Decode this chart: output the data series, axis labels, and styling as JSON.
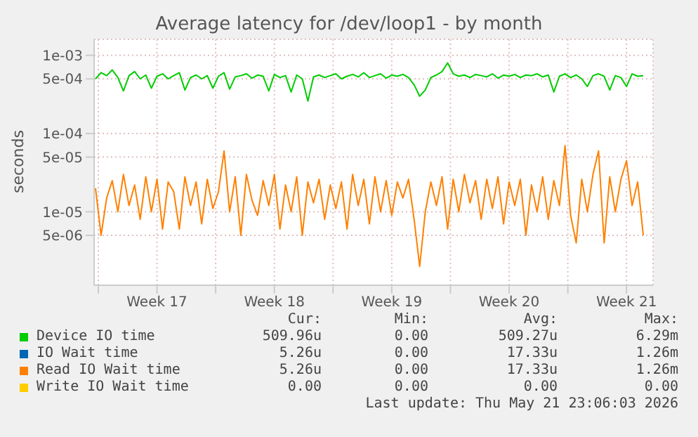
{
  "chart_data": {
    "type": "line",
    "title": "Average latency for /dev/loop1 - by month",
    "ylabel": "seconds",
    "x": [
      "2026-04-19T20:00",
      "2026-04-20T04:00",
      "2026-04-20T12:00",
      "2026-04-20T20:00",
      "2026-04-21T04:00",
      "2026-04-21T12:00",
      "2026-04-21T20:00",
      "2026-04-22T04:00",
      "2026-04-22T12:00",
      "2026-04-22T20:00",
      "2026-04-23T04:00",
      "2026-04-23T12:00",
      "2026-04-23T20:00",
      "2026-04-24T04:00",
      "2026-04-24T12:00",
      "2026-04-24T20:00",
      "2026-04-25T04:00",
      "2026-04-25T12:00",
      "2026-04-25T20:00",
      "2026-04-26T04:00",
      "2026-04-26T12:00",
      "2026-04-26T20:00",
      "2026-04-27T04:00",
      "2026-04-27T12:00",
      "2026-04-27T20:00",
      "2026-04-28T04:00",
      "2026-04-28T12:00",
      "2026-04-28T20:00",
      "2026-04-29T04:00",
      "2026-04-29T12:00",
      "2026-04-29T20:00",
      "2026-04-30T04:00",
      "2026-04-30T12:00",
      "2026-04-30T20:00",
      "2026-05-01T04:00",
      "2026-05-01T12:00",
      "2026-05-01T20:00",
      "2026-05-02T04:00",
      "2026-05-02T12:00",
      "2026-05-02T20:00",
      "2026-05-03T04:00",
      "2026-05-03T12:00",
      "2026-05-03T20:00",
      "2026-05-04T04:00",
      "2026-05-04T12:00",
      "2026-05-04T20:00",
      "2026-05-05T04:00",
      "2026-05-05T12:00",
      "2026-05-05T20:00",
      "2026-05-06T04:00",
      "2026-05-06T12:00",
      "2026-05-06T20:00",
      "2026-05-07T04:00",
      "2026-05-07T12:00",
      "2026-05-07T20:00",
      "2026-05-08T04:00",
      "2026-05-08T12:00",
      "2026-05-08T20:00",
      "2026-05-09T04:00",
      "2026-05-09T12:00",
      "2026-05-09T20:00",
      "2026-05-10T04:00",
      "2026-05-10T12:00",
      "2026-05-10T20:00",
      "2026-05-11T04:00",
      "2026-05-11T12:00",
      "2026-05-11T20:00",
      "2026-05-12T04:00",
      "2026-05-12T12:00",
      "2026-05-12T20:00",
      "2026-05-13T04:00",
      "2026-05-13T12:00",
      "2026-05-13T20:00",
      "2026-05-14T04:00",
      "2026-05-14T12:00",
      "2026-05-14T20:00",
      "2026-05-15T04:00",
      "2026-05-15T12:00",
      "2026-05-15T20:00",
      "2026-05-16T04:00",
      "2026-05-16T12:00",
      "2026-05-16T20:00",
      "2026-05-17T04:00",
      "2026-05-17T12:00",
      "2026-05-17T20:00",
      "2026-05-18T04:00",
      "2026-05-18T12:00",
      "2026-05-18T20:00",
      "2026-05-19T04:00",
      "2026-05-19T12:00",
      "2026-05-19T20:00",
      "2026-05-20T04:00",
      "2026-05-20T12:00",
      "2026-05-20T20:00",
      "2026-05-21T04:00",
      "2026-05-21T12:00",
      "2026-05-21T20:00",
      "2026-05-22T04:00",
      "2026-05-22T12:00"
    ],
    "series": [
      {
        "name": "Device IO time",
        "color": "#00cc00",
        "values": [
          0.0005,
          0.0006,
          0.00055,
          0.00065,
          0.00052,
          0.00035,
          0.00055,
          0.00062,
          0.0005,
          0.00056,
          0.00038,
          0.00054,
          0.00058,
          0.0005,
          0.00055,
          0.0006,
          0.00036,
          0.00052,
          0.00056,
          0.0005,
          0.00055,
          0.00038,
          0.00054,
          0.0006,
          0.00037,
          0.00053,
          0.00055,
          0.00058,
          0.00051,
          0.00056,
          0.00054,
          0.00035,
          0.00057,
          0.00052,
          0.00055,
          0.00034,
          0.00056,
          0.0005,
          0.00026,
          0.00053,
          0.00056,
          0.00052,
          0.00055,
          0.00058,
          0.0005,
          0.00054,
          0.00057,
          0.00053,
          0.0006,
          0.00052,
          0.00055,
          0.00058,
          0.00051,
          0.00056,
          0.00054,
          0.00057,
          0.00052,
          0.00042,
          0.0003,
          0.00036,
          0.00052,
          0.00056,
          0.00062,
          0.0008,
          0.00058,
          0.00054,
          0.00056,
          0.00052,
          0.00057,
          0.00055,
          0.00053,
          0.00058,
          0.00051,
          0.00056,
          0.00054,
          0.00057,
          0.00052,
          0.00056,
          0.00055,
          0.00058,
          0.00053,
          0.00056,
          0.00034,
          0.00054,
          0.00058,
          0.00052,
          0.00056,
          0.0005,
          0.0004,
          0.00055,
          0.00058,
          0.00054,
          0.00036,
          0.00055,
          0.00052,
          0.0004,
          0.00058,
          0.00054,
          0.00055
        ]
      },
      {
        "name": "IO Wait time",
        "color": "#0066b3",
        "values": [
          null,
          null,
          null,
          null,
          null,
          null,
          null,
          null,
          null,
          null,
          null,
          null,
          null,
          null,
          null,
          null,
          null,
          null,
          null,
          null,
          null,
          null,
          null,
          null,
          null,
          null,
          null,
          null,
          null,
          null,
          null,
          null,
          null,
          null,
          null,
          null,
          null,
          null,
          null,
          null,
          null,
          null,
          null,
          null,
          null,
          null,
          null,
          null,
          null,
          null,
          null,
          null,
          null,
          null,
          null,
          null,
          null,
          null,
          null,
          null,
          null,
          null,
          null,
          null,
          null,
          null,
          null,
          null,
          null,
          null,
          null,
          null,
          null,
          null,
          null,
          null,
          null,
          null,
          null,
          null,
          null,
          null,
          null,
          null,
          null,
          null,
          null,
          null,
          null,
          null,
          null,
          null,
          null,
          null,
          null,
          null,
          null,
          null,
          null
        ]
      },
      {
        "name": "Read IO Wait time",
        "color": "#ff8000",
        "values": [
          2e-05,
          5e-06,
          1.5e-05,
          2.5e-05,
          1e-05,
          3e-05,
          1.2e-05,
          2.2e-05,
          8e-06,
          2.8e-05,
          1e-05,
          2.6e-05,
          6e-06,
          2.4e-05,
          1.8e-05,
          6e-06,
          2.8e-05,
          1.2e-05,
          2.4e-05,
          7e-06,
          2.6e-05,
          1.1e-05,
          1.8e-05,
          6e-05,
          1e-05,
          2.8e-05,
          5e-06,
          3e-05,
          1.4e-05,
          9e-06,
          2.5e-05,
          1.2e-05,
          3e-05,
          6e-06,
          2.2e-05,
          1e-05,
          2.8e-05,
          5e-06,
          2.4e-05,
          1.3e-05,
          2.6e-05,
          8e-06,
          2.2e-05,
          1.1e-05,
          2.4e-05,
          6e-06,
          3e-05,
          1.2e-05,
          2.6e-05,
          7e-06,
          2.8e-05,
          1e-05,
          2.5e-05,
          9e-06,
          2.4e-05,
          1.5e-05,
          2.6e-05,
          8e-06,
          2e-06,
          1e-05,
          2.4e-05,
          1.2e-05,
          2.8e-05,
          6e-06,
          2.6e-05,
          1e-05,
          3e-05,
          1.3e-05,
          2.5e-05,
          8e-06,
          2.6e-05,
          1.1e-05,
          2.8e-05,
          7e-06,
          2.4e-05,
          1.2e-05,
          2.6e-05,
          5e-06,
          2.2e-05,
          1e-05,
          2.8e-05,
          8e-06,
          2.5e-05,
          1.2e-05,
          7e-05,
          9e-06,
          4e-06,
          2.6e-05,
          1e-05,
          3e-05,
          6e-05,
          4e-06,
          2.8e-05,
          1e-05,
          2.6e-05,
          4.5e-05,
          1.2e-05,
          2.4e-05,
          5e-06
        ]
      },
      {
        "name": "Write IO Wait time",
        "color": "#ffcc00",
        "values": [
          null,
          null,
          null,
          null,
          null,
          null,
          null,
          null,
          null,
          null,
          null,
          null,
          null,
          null,
          null,
          null,
          null,
          null,
          null,
          null,
          null,
          null,
          null,
          null,
          null,
          null,
          null,
          null,
          null,
          null,
          null,
          null,
          null,
          null,
          null,
          null,
          null,
          null,
          null,
          null,
          null,
          null,
          null,
          null,
          null,
          null,
          null,
          null,
          null,
          null,
          null,
          null,
          null,
          null,
          null,
          null,
          null,
          null,
          null,
          null,
          null,
          null,
          null,
          null,
          null,
          null,
          null,
          null,
          null,
          null,
          null,
          null,
          null,
          null,
          null,
          null,
          null,
          null,
          null,
          null,
          null,
          null,
          null,
          null,
          null,
          null,
          null,
          null,
          null,
          null,
          null,
          null,
          null,
          null,
          null,
          null,
          null,
          null,
          null
        ]
      }
    ],
    "log": "y",
    "ylim": [
      1.15e-06,
      0.0016
    ],
    "yticks": [
      {
        "value": 5e-06,
        "label": "5e-06"
      },
      {
        "value": 1e-05,
        "label": "1e-05"
      },
      {
        "value": 5e-05,
        "label": "5e-05"
      },
      {
        "value": 0.0001,
        "label": "1e-04"
      },
      {
        "value": 0.0005,
        "label": "5e-04"
      },
      {
        "value": 0.001,
        "label": "1e-03"
      }
    ],
    "xlim": [
      "2026-04-19T18:00",
      "2026-05-23T02:00"
    ],
    "xticks": [
      {
        "value": "2026-04-20T00:00",
        "label": null
      },
      {
        "value": "2026-04-23T12:00",
        "label": "Week 17"
      },
      {
        "value": "2026-04-27T00:00",
        "label": null
      },
      {
        "value": "2026-04-30T12:00",
        "label": "Week 18"
      },
      {
        "value": "2026-05-04T00:00",
        "label": null
      },
      {
        "value": "2026-05-07T12:00",
        "label": "Week 19"
      },
      {
        "value": "2026-05-11T00:00",
        "label": null
      },
      {
        "value": "2026-05-14T12:00",
        "label": "Week 20"
      },
      {
        "value": "2026-05-18T00:00",
        "label": null
      },
      {
        "value": "2026-05-21T12:00",
        "label": "Week 21"
      }
    ],
    "grid": true,
    "legend": "bottom",
    "annotations": [
      "Cur:",
      "Min:",
      "Avg:",
      "Max:",
      "509.96u",
      "0.00",
      "509.27u",
      "6.29m",
      "5.26u",
      "0.00",
      "17.33u",
      "1.26m",
      "5.26u",
      "0.00",
      "17.33u",
      "1.26m",
      "0.00",
      "0.00",
      "0.00",
      "0.00",
      "Last update: Thu May 21 23:06:03 2026"
    ]
  }
}
